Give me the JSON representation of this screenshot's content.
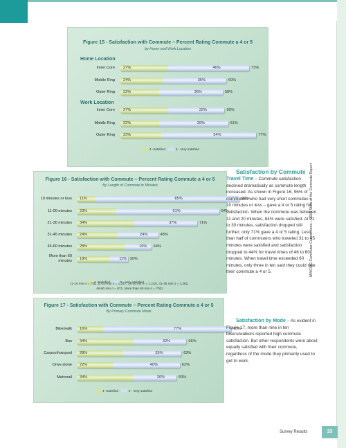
{
  "figure15": {
    "title": "Figure 15 - Satisfaction with Commute – Percent Rating Commute a 4 or 5",
    "subtitle": "by Home and Work Location",
    "sections": [
      {
        "heading": "Home Location",
        "rows": [
          {
            "label": "Inner Core",
            "satisfied": 27,
            "very": 46,
            "total": 73,
            "a": "27%",
            "b": "46%",
            "t": "73%"
          },
          {
            "label": "Middle Ring",
            "satisfied": 24,
            "very": 36,
            "total": 60,
            "a": "24%",
            "b": "36%",
            "t": "60%"
          },
          {
            "label": "Outer Ring",
            "satisfied": 22,
            "very": 36,
            "total": 58,
            "a": "22%",
            "b": "36%",
            "t": "58%"
          }
        ]
      },
      {
        "heading": "Work Location",
        "rows": [
          {
            "label": "Inner Core",
            "satisfied": 27,
            "very": 32,
            "total": 59,
            "a": "27%",
            "b": "32%",
            "t": "59%"
          },
          {
            "label": "Middle Ring",
            "satisfied": 22,
            "very": 39,
            "total": 61,
            "a": "22%",
            "b": "39%",
            "t": "61%"
          },
          {
            "label": "Outer Ring",
            "satisfied": 23,
            "very": 54,
            "total": 77,
            "a": "23%",
            "b": "54%",
            "t": "77%"
          }
        ]
      }
    ],
    "legend": {
      "a": "4 -Satisfied",
      "b": "5 - Very satisfied"
    }
  },
  "figure16": {
    "title": "Figure 16 - Satisfaction with Commute – Percent Rating Commute a 4 or 5",
    "subtitle": "By Length of Commute in Minutes",
    "rows": [
      {
        "label": "10 minutes or less",
        "satisfied": 11,
        "very": 85,
        "total": 96,
        "a": "11%",
        "b": "85%",
        "t": "96%"
      },
      {
        "label": "11-20 minutes",
        "satisfied": 23,
        "very": 61,
        "total": 84,
        "a": "23%",
        "b": "61%",
        "t": "84%"
      },
      {
        "label": "21-30 minutes",
        "satisfied": 34,
        "very": 37,
        "total": 71,
        "a": "34%",
        "b": "37%",
        "t": "71%"
      },
      {
        "label": "31-45 minutes",
        "satisfied": 24,
        "very": 24,
        "total": 48,
        "a": "24%",
        "b": "24%",
        "t": "48%"
      },
      {
        "label": "46-60 minutes",
        "satisfied": 28,
        "very": 16,
        "total": 44,
        "a": "28%",
        "b": "16%",
        "t": "44%"
      },
      {
        "label": "More than 60 minutes",
        "satisfied": 19,
        "very": 11,
        "total": 30,
        "a": "19%",
        "b": "11%",
        "t": "30%"
      }
    ],
    "legend": {
      "a": "4 -Satisfied",
      "b": "5 - Very satisfied"
    },
    "note1": "(1-10 min n = 735, 11-20 min n = 1,247, 21-30 min n = 1,010, 31-45 min n = 1,282,",
    "note2": "46-60 min n = 871, More than 60 min n = 702)"
  },
  "figure17": {
    "title": "Figure 17 - Satisfaction with Commute – Percent Rating Commute a 4 or 5",
    "subtitle": "By Primary Commute Mode",
    "rows": [
      {
        "label": "Bike/walk",
        "satisfied": 16,
        "very": 77,
        "total": 93,
        "a": "16%",
        "b": "77%",
        "t": "93%"
      },
      {
        "label": "Bus",
        "satisfied": 34,
        "very": 32,
        "total": 66,
        "a": "34%",
        "b": "32%",
        "t": "66%"
      },
      {
        "label": "Carpool/vanpool",
        "satisfied": 28,
        "very": 35,
        "total": 63,
        "a": "28%",
        "b": "35%",
        "t": "63%"
      },
      {
        "label": "Drive alone",
        "satisfied": 22,
        "very": 40,
        "total": 62,
        "a": "22%",
        "b": "40%",
        "t": "62%"
      },
      {
        "label": "Metrorail",
        "satisfied": 34,
        "very": 26,
        "total": 60,
        "a": "34%",
        "b": "26%",
        "t": "60%"
      }
    ],
    "legend": {
      "a": "4 -Satisfied",
      "b": "5 - Very satisfied"
    }
  },
  "text": {
    "head1a": "Satisfaction by Commute",
    "head1b": "Travel Time",
    "para1": "– Commute satisfaction declined dramatically as commute length increased. As shown in Figure 16, 96% of commuters who had very short commutes – 10 minutes or less – gave a 4 or 5 rating for satisfaction. When the commute was between 11 and 20 minutes, 84% were satisfied. At 21 to 30 minutes, satisfaction dropped still further; only 71% gave a 4 or 5 rating. Less than half of commuters who traveled 31 to 45 minutes were satisfied and satisfaction dropped to 44% for travel times of 46 to 60 minutes. When travel time exceeded 60 minutes, only three in ten said they could rate their commute a 4 or 5.",
    "head2": "Satisfaction by Mode",
    "para2": "– As evident in Figure 17, more than nine in ten bikers/walkers reported high commute satisfaction. But other respondents were about equally satisfied with their commute, regardless of the mode they primarily used to get to work."
  },
  "sidebar_text": "MWCOG Commuter Connections— 2010 State of the Commute Report",
  "footer": {
    "section": "Survey Results",
    "page": "33"
  },
  "chart_data": [
    {
      "type": "bar",
      "title": "Figure 15 - Satisfaction with Commute – Percent Rating Commute a 4 or 5",
      "subtitle": "by Home and Work Location",
      "categories": [
        "Home Location - Inner Core",
        "Home Location - Middle Ring",
        "Home Location - Outer Ring",
        "Work Location - Inner Core",
        "Work Location - Middle Ring",
        "Work Location - Outer Ring"
      ],
      "series": [
        {
          "name": "4 -Satisfied",
          "values": [
            27,
            24,
            22,
            27,
            22,
            23
          ]
        },
        {
          "name": "5 - Very satisfied",
          "values": [
            46,
            36,
            36,
            32,
            39,
            54
          ]
        }
      ],
      "totals": [
        73,
        60,
        58,
        59,
        61,
        77
      ],
      "stacked": true,
      "orientation": "horizontal"
    },
    {
      "type": "bar",
      "title": "Figure 16 - Satisfaction with Commute – Percent Rating Commute a 4 or 5",
      "subtitle": "By Length of Commute in Minutes",
      "categories": [
        "10 minutes or less",
        "11-20 minutes",
        "21-30 minutes",
        "31-45 minutes",
        "46-60 minutes",
        "More than 60 minutes"
      ],
      "series": [
        {
          "name": "4 -Satisfied",
          "values": [
            11,
            23,
            34,
            24,
            28,
            19
          ]
        },
        {
          "name": "5 - Very satisfied",
          "values": [
            85,
            61,
            37,
            24,
            16,
            11
          ]
        }
      ],
      "totals": [
        96,
        84,
        71,
        48,
        44,
        30
      ],
      "stacked": true,
      "orientation": "horizontal"
    },
    {
      "type": "bar",
      "title": "Figure 17 - Satisfaction with Commute – Percent Rating Commute a 4 or 5",
      "subtitle": "By Primary Commute Mode",
      "categories": [
        "Bike/walk",
        "Bus",
        "Carpool/vanpool",
        "Drive alone",
        "Metrorail"
      ],
      "series": [
        {
          "name": "4 -Satisfied",
          "values": [
            16,
            34,
            28,
            22,
            34
          ]
        },
        {
          "name": "5 - Very satisfied",
          "values": [
            77,
            32,
            35,
            40,
            26
          ]
        }
      ],
      "totals": [
        93,
        66,
        63,
        62,
        60
      ],
      "stacked": true,
      "orientation": "horizontal"
    }
  ]
}
